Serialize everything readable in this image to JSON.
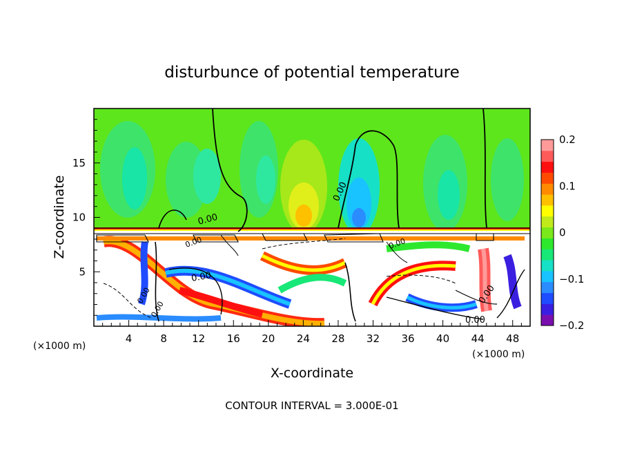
{
  "chart_data": {
    "type": "heatmap",
    "title": "disturbunce of potential temperature",
    "xlabel": "X-coordinate",
    "ylabel": "Z-coordinate",
    "x_unit": "(×1000 m)",
    "x_unit_right": "(×1000 m)",
    "xlim": [
      0,
      50
    ],
    "ylim": [
      0,
      20
    ],
    "x_ticks": [
      "4",
      "8",
      "12",
      "16",
      "20",
      "24",
      "28",
      "32",
      "36",
      "40",
      "44",
      "48"
    ],
    "y_ticks": [
      "5",
      "10",
      "15"
    ],
    "colorbar": {
      "range": [
        -0.2,
        0.2
      ],
      "tick_labels": [
        "0.2",
        "0.1",
        "0",
        "−0.1",
        "−0.2"
      ],
      "colors": [
        "#7a0fb0",
        "#3a1fe0",
        "#1f4cff",
        "#2a8cff",
        "#19c3ff",
        "#16e0c6",
        "#18e877",
        "#2ee82e",
        "#7ae81a",
        "#c0ea1a",
        "#ffff00",
        "#ffc000",
        "#ff8a00",
        "#ff4a00",
        "#ff1010",
        "#ff5a5a",
        "#ff9a9a"
      ]
    },
    "contour_labels": [
      "0.00",
      "0.00",
      "0.00",
      "0.00",
      "0.00",
      "0.00",
      "0.00",
      "0.00",
      "0.00"
    ],
    "grid": false,
    "footnote": "CONTOUR INTERVAL = 3.000E-01"
  }
}
